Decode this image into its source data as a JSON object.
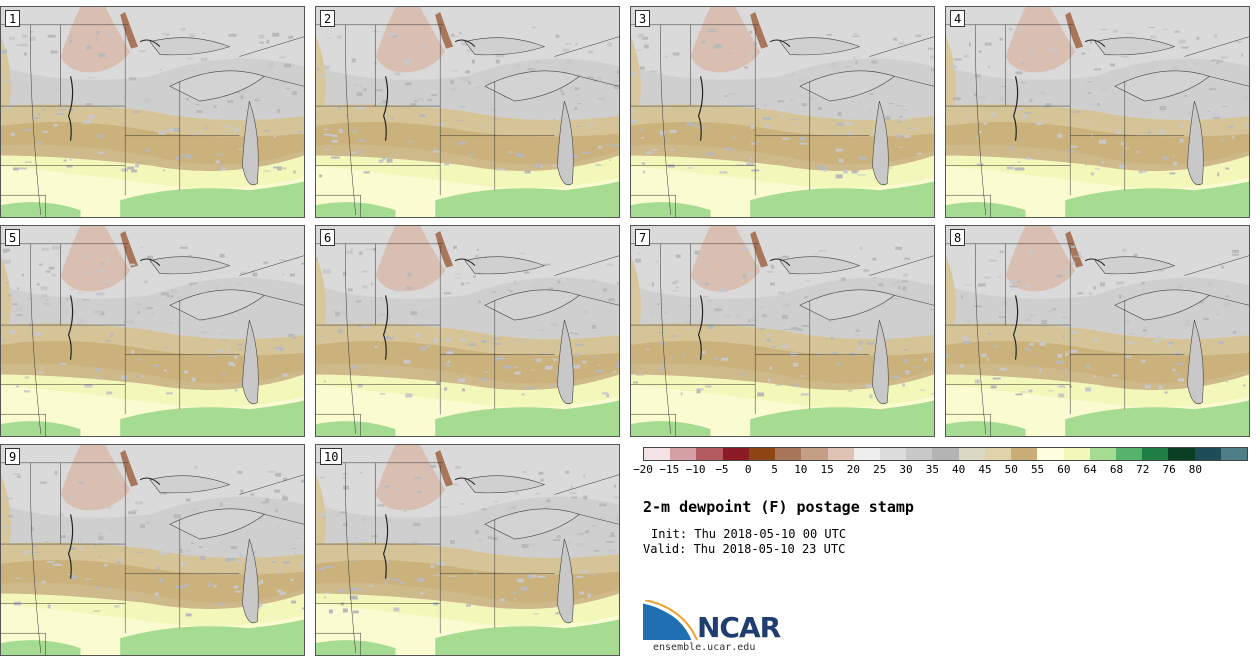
{
  "stamps": [
    {
      "label": "1"
    },
    {
      "label": "2"
    },
    {
      "label": "3"
    },
    {
      "label": "4"
    },
    {
      "label": "5"
    },
    {
      "label": "6"
    },
    {
      "label": "7"
    },
    {
      "label": "8"
    },
    {
      "label": "9"
    },
    {
      "label": "10"
    }
  ],
  "colorbar": {
    "colors": [
      "#f3e3e6",
      "#d5a0a3",
      "#b35b60",
      "#8a1a23",
      "#8e4513",
      "#a8765b",
      "#c49e85",
      "#dfc3b5",
      "#eeeeee",
      "#dcdcdc",
      "#c8c8c8",
      "#b4b4b4",
      "#d9d9c4",
      "#e0d3ab",
      "#c8ae74",
      "#fefee0",
      "#f4f7ba",
      "#a6db92",
      "#55b36b",
      "#1e7e44",
      "#0b3f24",
      "#1e4d57",
      "#4f7f86"
    ],
    "ticks": [
      "−20",
      "−15",
      "−10",
      "−5",
      "0",
      "5",
      "10",
      "15",
      "20",
      "25",
      "30",
      "35",
      "40",
      "45",
      "50",
      "55",
      "60",
      "64",
      "68",
      "72",
      "76",
      "80"
    ]
  },
  "title": "2-m dewpoint (F) postage stamp",
  "init": "Init: Thu 2018-05-10 00 UTC",
  "valid": "Valid: Thu 2018-05-10 23 UTC",
  "logo": {
    "name": "NCAR",
    "url_text": "ensemble.ucar.edu"
  }
}
